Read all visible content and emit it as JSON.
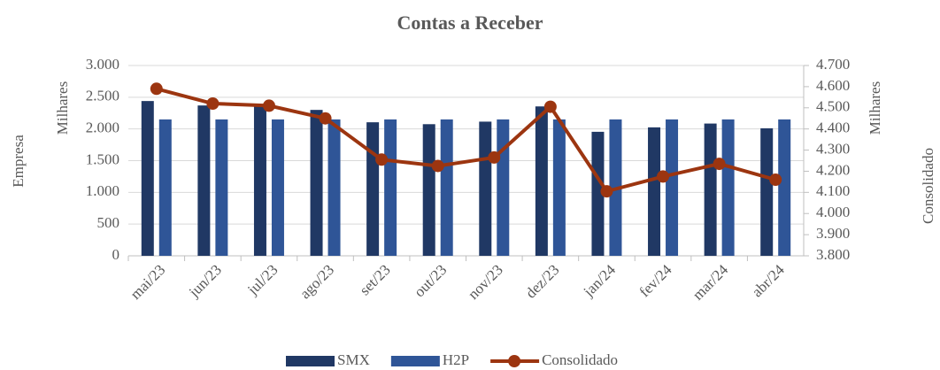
{
  "chart_data": {
    "type": "bar_line",
    "title": "Contas a Receber",
    "y_label": "Empresa",
    "y_unit": "Milhares",
    "y2_label": "Consolidado",
    "y2_unit": "Milhares",
    "categories": [
      "mai/23",
      "jun/23",
      "jul/23",
      "ago/23",
      "set/23",
      "out/23",
      "nov/23",
      "dez/23",
      "jan/24",
      "fev/24",
      "mar/24",
      "abr/24"
    ],
    "series": [
      {
        "name": "SMX",
        "type": "bar",
        "color": "#203864",
        "values": [
          2440,
          2370,
          2360,
          2300,
          2105,
          2075,
          2115,
          2355,
          1955,
          2025,
          2085,
          2010
        ]
      },
      {
        "name": "H2P",
        "type": "bar",
        "color": "#2f5597",
        "values": [
          2150,
          2150,
          2150,
          2150,
          2150,
          2150,
          2150,
          2150,
          2150,
          2150,
          2150,
          2150
        ]
      },
      {
        "name": "Consolidado",
        "type": "line",
        "axis": "y2",
        "color": "#9c3510",
        "values": [
          4590,
          4520,
          4510,
          4450,
          4255,
          4225,
          4265,
          4505,
          4105,
          4175,
          4235,
          4160
        ]
      }
    ],
    "ylim": [
      0,
      3000
    ],
    "yticks": [
      0,
      500,
      {
        "value": 1000,
        "label": "1.000"
      },
      {
        "value": 1500,
        "label": "1.500"
      },
      {
        "value": 2000,
        "label": "2.000"
      },
      {
        "value": 2500,
        "label": "2.500"
      },
      {
        "value": 3000,
        "label": "3.000"
      }
    ],
    "y2lim": [
      3800,
      4700
    ],
    "y2ticks": [
      {
        "value": 3800,
        "label": "3.800"
      },
      {
        "value": 3900,
        "label": "3.900"
      },
      {
        "value": 4000,
        "label": "4.000"
      },
      {
        "value": 4100,
        "label": "4.100"
      },
      {
        "value": 4200,
        "label": "4.200"
      },
      {
        "value": 4300,
        "label": "4.300"
      },
      {
        "value": 4400,
        "label": "4.400"
      },
      {
        "value": 4500,
        "label": "4.500"
      },
      {
        "value": 4600,
        "label": "4.600"
      },
      {
        "value": 4700,
        "label": "4.700"
      }
    ],
    "grid": true,
    "legend": "bottom"
  }
}
